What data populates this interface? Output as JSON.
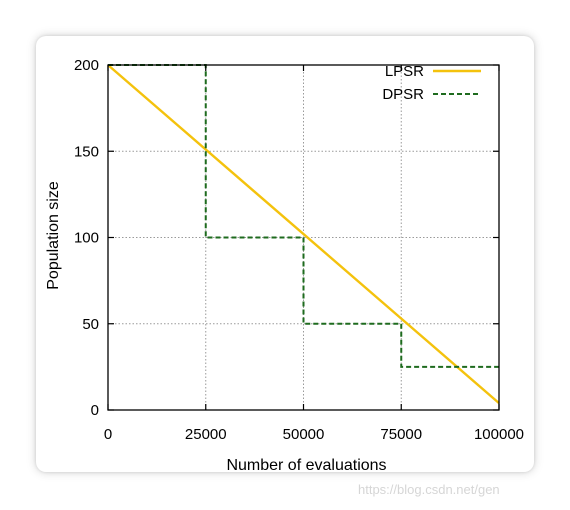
{
  "chart_data": {
    "type": "line",
    "xlabel": "Number of evaluations",
    "ylabel": "Population size",
    "xlim": [
      0,
      100000
    ],
    "ylim": [
      0,
      200
    ],
    "x_ticks": [
      "0",
      "25000",
      "50000",
      "75000",
      "100000"
    ],
    "y_ticks": [
      "0",
      "50",
      "100",
      "150",
      "200"
    ],
    "grid": true,
    "legend_position": "top-right",
    "series": [
      {
        "name": "LPSR",
        "color": "#f4c20d",
        "style": "solid",
        "x": [
          0,
          100000
        ],
        "y": [
          200,
          4
        ]
      },
      {
        "name": "DPSR",
        "color": "#1e6b1e",
        "style": "dashed",
        "x": [
          0,
          25000,
          25000,
          50000,
          50000,
          75000,
          75000,
          100000
        ],
        "y": [
          200,
          200,
          100,
          100,
          50,
          50,
          25,
          25
        ]
      }
    ]
  },
  "watermark": "https://blog.csdn.net/gen"
}
